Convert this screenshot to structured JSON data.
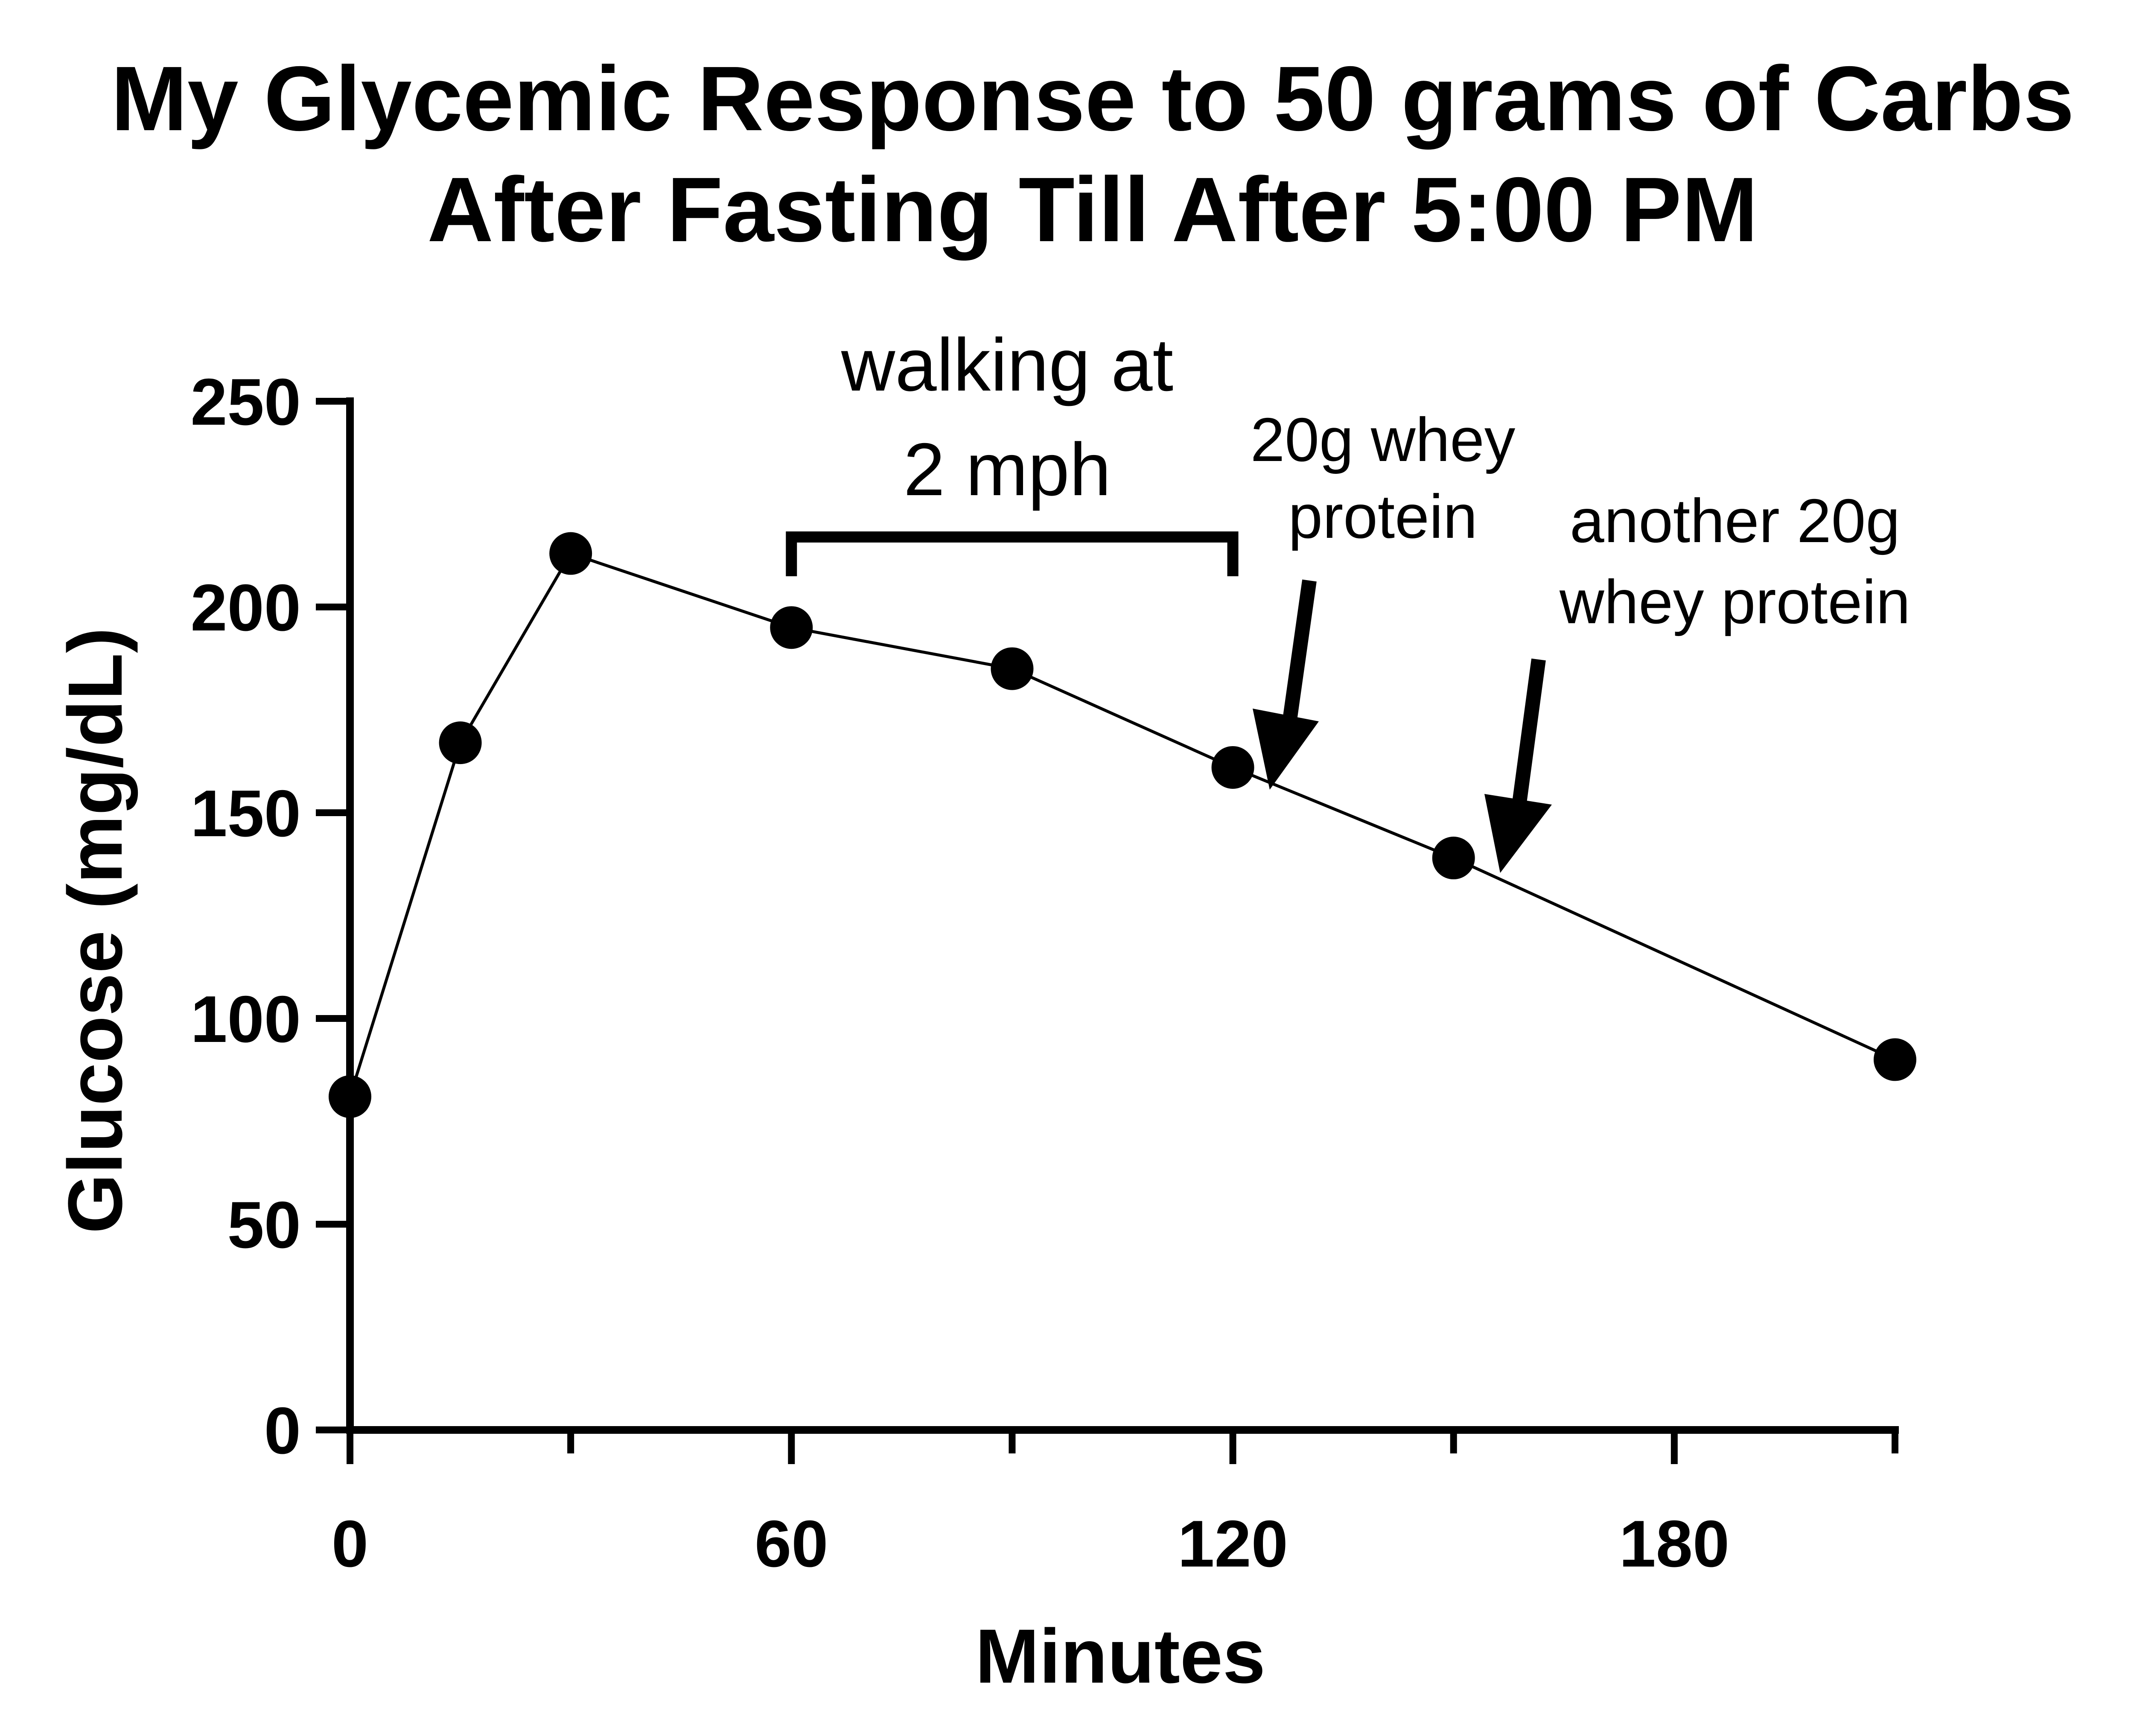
{
  "chart_data": {
    "type": "line",
    "title_lines": [
      "My Glycemic Response to 50 grams of Carbs",
      "After Fasting Till After 5:00 PM"
    ],
    "xlabel": "Minutes",
    "ylabel": "Glucose (mg/dL)",
    "xlim": [
      0,
      210
    ],
    "ylim": [
      0,
      250
    ],
    "x_ticks": [
      0,
      60,
      120,
      180
    ],
    "x_minor_ticks": [
      30,
      90,
      150,
      210
    ],
    "y_ticks": [
      0,
      50,
      100,
      150,
      200,
      250
    ],
    "grid": false,
    "legend": "none",
    "series": [
      {
        "x": [
          0,
          15,
          30,
          60,
          90,
          120,
          150,
          210
        ],
        "y": [
          81,
          167,
          213,
          195,
          185,
          161,
          139,
          90
        ]
      }
    ],
    "annotations": {
      "walking": {
        "lines": [
          "walking at",
          "2 mph"
        ],
        "x_start": 60,
        "x_end": 120
      },
      "whey1": {
        "lines": [
          "20g whey",
          "protein"
        ],
        "x": 125
      },
      "whey2": {
        "lines": [
          "another 20g",
          "whey protein"
        ],
        "x": 156
      }
    },
    "colors": {
      "line": "#000000",
      "marker": "#000000",
      "axis": "#000000"
    }
  }
}
